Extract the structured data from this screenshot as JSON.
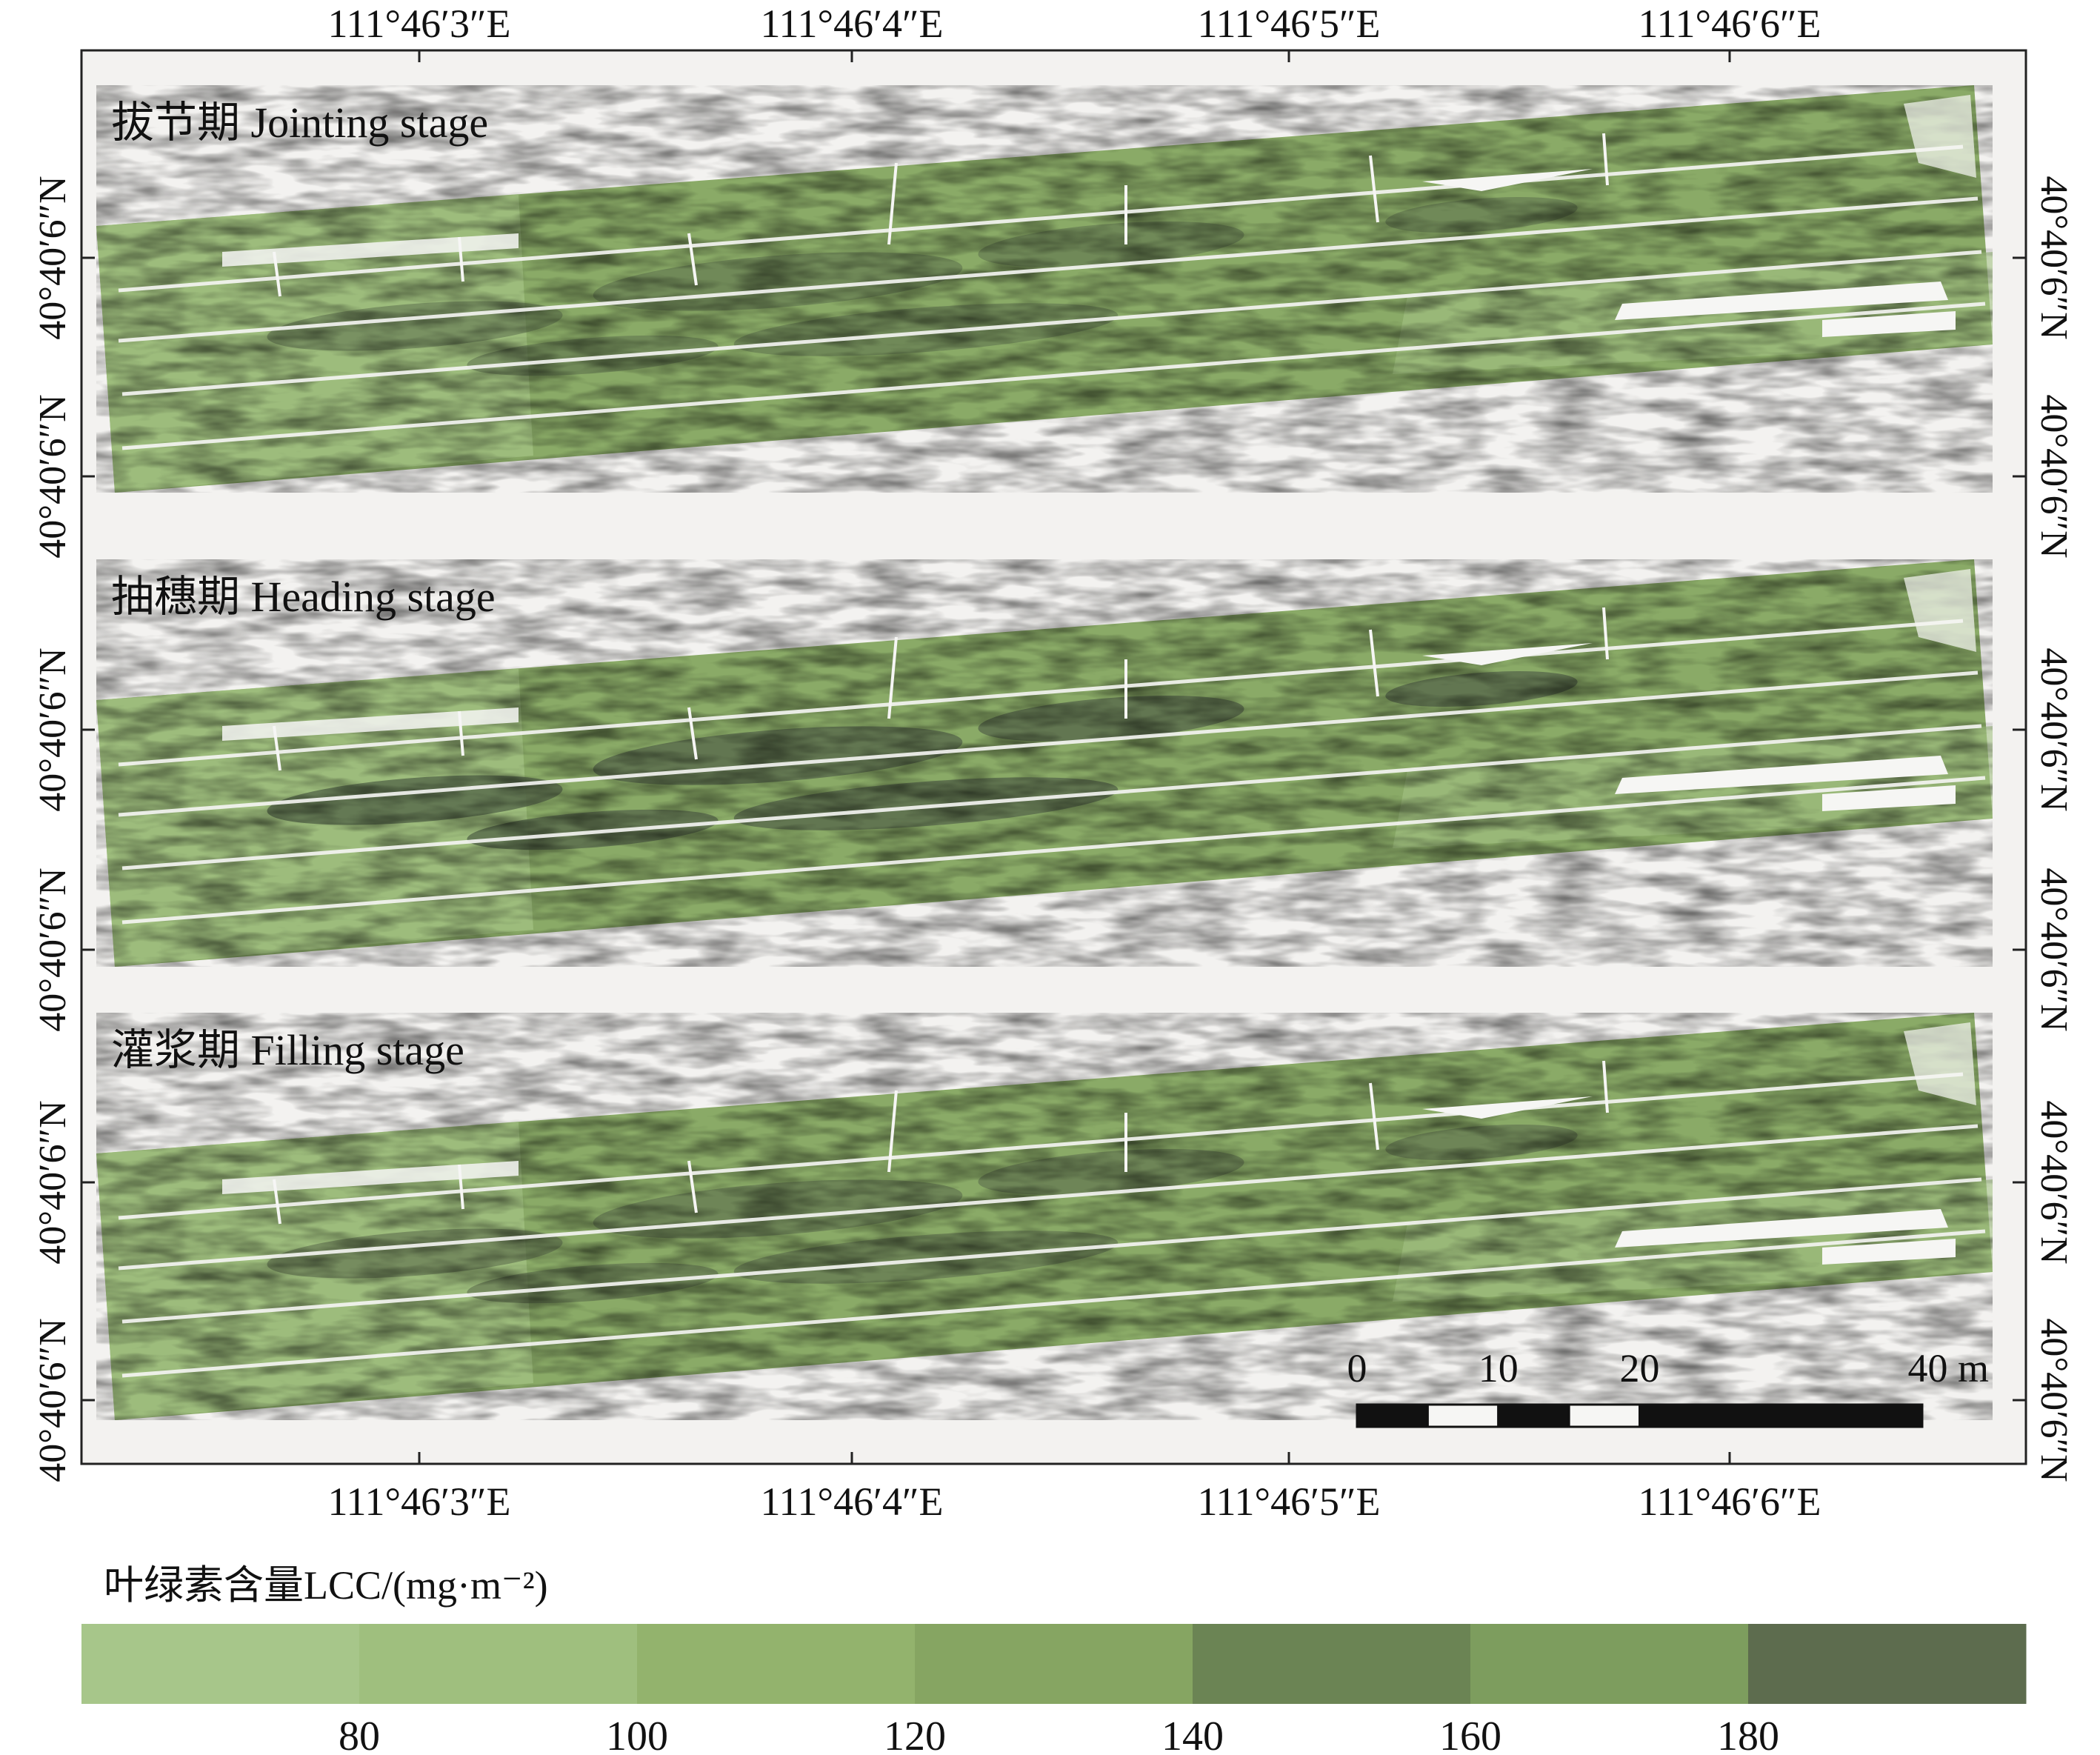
{
  "map": {
    "top_longitude_labels": [
      "111°46′3″E",
      "111°46′4″E",
      "111°46′5″E",
      "111°46′6″E"
    ],
    "bottom_longitude_labels": [
      "111°46′3″E",
      "111°46′4″E",
      "111°46′5″E",
      "111°46′6″E"
    ],
    "left_latitude_labels": [
      "40°40′6″N",
      "40°40′6″N",
      "40°40′6″N",
      "40°40′6″N",
      "40°40′6″N",
      "40°40′6″N"
    ],
    "right_latitude_labels": [
      "40°40′6″N",
      "40°40′6″N",
      "40°40′6″N",
      "40°40′6″N",
      "40°40′6″N",
      "40°40′6″N"
    ],
    "panels": [
      {
        "title": "拔节期 Jointing stage",
        "stage": "jointing"
      },
      {
        "title": "抽穗期 Heading stage",
        "stage": "heading"
      },
      {
        "title": "灌浆期 Filling stage",
        "stage": "filling"
      }
    ],
    "scale_bar": {
      "labels": [
        "0",
        "10",
        "20",
        "40 m"
      ],
      "segment_values": [
        0,
        5,
        10,
        15,
        20,
        40
      ],
      "unit": "m"
    },
    "background_color": "#f3f2f0",
    "field_colors": {
      "light": "#a3c183",
      "mid": "#8aaa67",
      "deep": "#6f8b55",
      "dark": "#5b6d4d"
    }
  },
  "legend": {
    "title": "叶绿素含量LCC/(mg·m⁻²)",
    "tick_labels": [
      "80",
      "100",
      "120",
      "140",
      "160",
      "180"
    ],
    "class_colors": [
      "#a7c68a",
      "#9fbf7e",
      "#93b36d",
      "#86a562",
      "#6b8454",
      "#7d9d5e",
      "#5d6c4e"
    ]
  }
}
